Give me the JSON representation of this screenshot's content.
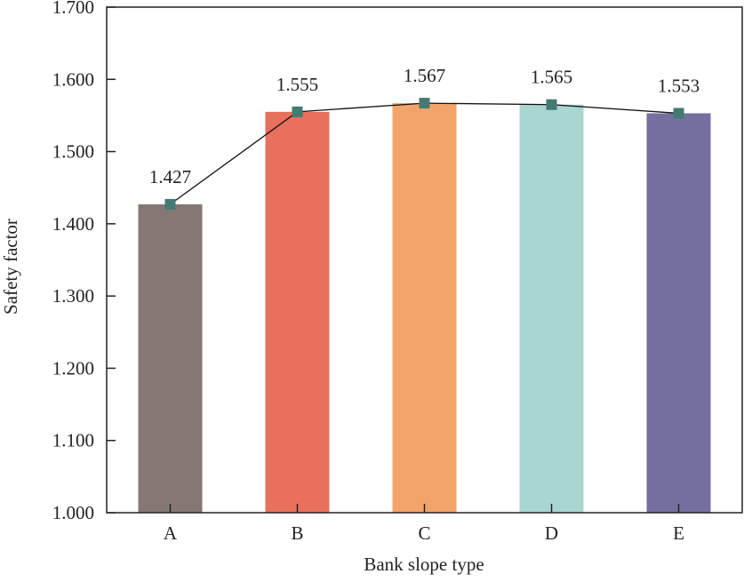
{
  "chart_data": {
    "type": "bar",
    "title": "",
    "xlabel": "Bank slope type",
    "ylabel": "Safety factor",
    "categories": [
      "A",
      "B",
      "C",
      "D",
      "E"
    ],
    "values": [
      1.427,
      1.555,
      1.567,
      1.565,
      1.553
    ],
    "value_labels": [
      "1.427",
      "1.555",
      "1.567",
      "1.565",
      "1.553"
    ],
    "bar_colors": [
      "#857874",
      "#E8705C",
      "#F2A46A",
      "#A9D6D1",
      "#7470A0"
    ],
    "line_overlay": {
      "values": [
        1.427,
        1.555,
        1.567,
        1.565,
        1.553
      ],
      "marker": "square",
      "marker_color": "#437A73",
      "line_color": "#111111"
    },
    "ylim": [
      1.0,
      1.7
    ],
    "yticks": [
      1.0,
      1.1,
      1.2,
      1.3,
      1.4,
      1.5,
      1.6,
      1.7
    ],
    "ytick_labels": [
      "1.000",
      "1.100",
      "1.200",
      "1.300",
      "1.400",
      "1.500",
      "1.600",
      "1.700"
    ],
    "grid": false,
    "legend": "none"
  }
}
